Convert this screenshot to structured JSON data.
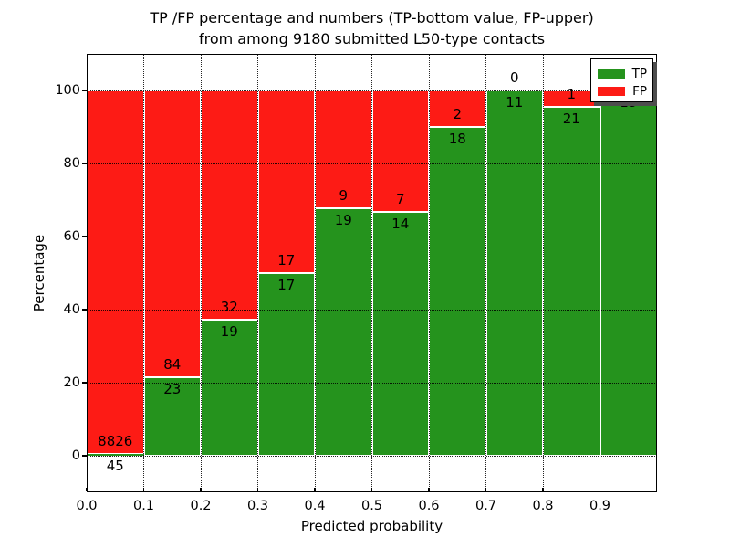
{
  "figure": {
    "title_line1": "TP /FP percentage and numbers (TP-bottom value, FP-upper)",
    "title_line2": "from among 9180 submitted L50-type contacts"
  },
  "chart_data": {
    "type": "bar",
    "stacked": true,
    "title": "TP /FP percentage and numbers (TP-bottom value, FP-upper) from among 9180 submitted L50-type contacts",
    "xlabel": "Predicted probability",
    "ylabel": "Percentage",
    "xlim": [
      0,
      1
    ],
    "ylim": [
      -10,
      110
    ],
    "x_tick_labels": [
      "0.0",
      "0.1",
      "0.2",
      "0.3",
      "0.4",
      "0.5",
      "0.6",
      "0.7",
      "0.8",
      "0.9"
    ],
    "y_tick_values": [
      0,
      20,
      40,
      60,
      80,
      100
    ],
    "grid": true,
    "grid_style": "dotted, drawn above bars",
    "legend_position": "upper right",
    "total_contacts": 9180,
    "colors": {
      "tp": "#25931d",
      "fp": "#fd1b15",
      "bar_edge": "#ffffff"
    },
    "legend": [
      {
        "label": "TP",
        "color": "#25931d"
      },
      {
        "label": "FP",
        "color": "#fd1b15"
      }
    ],
    "bins": [
      {
        "x_start": 0.0,
        "x_end": 0.1,
        "tp": 45,
        "fp": 8826
      },
      {
        "x_start": 0.1,
        "x_end": 0.2,
        "tp": 23,
        "fp": 84
      },
      {
        "x_start": 0.2,
        "x_end": 0.3,
        "tp": 19,
        "fp": 32
      },
      {
        "x_start": 0.3,
        "x_end": 0.4,
        "tp": 17,
        "fp": 17
      },
      {
        "x_start": 0.4,
        "x_end": 0.5,
        "tp": 19,
        "fp": 9
      },
      {
        "x_start": 0.5,
        "x_end": 0.6,
        "tp": 14,
        "fp": 7
      },
      {
        "x_start": 0.6,
        "x_end": 0.7,
        "tp": 18,
        "fp": 2
      },
      {
        "x_start": 0.7,
        "x_end": 0.8,
        "tp": 11,
        "fp": 0
      },
      {
        "x_start": 0.8,
        "x_end": 0.9,
        "tp": 21,
        "fp": 1
      },
      {
        "x_start": 0.9,
        "x_end": 1.0,
        "tp": 15,
        "fp": 0
      }
    ]
  }
}
